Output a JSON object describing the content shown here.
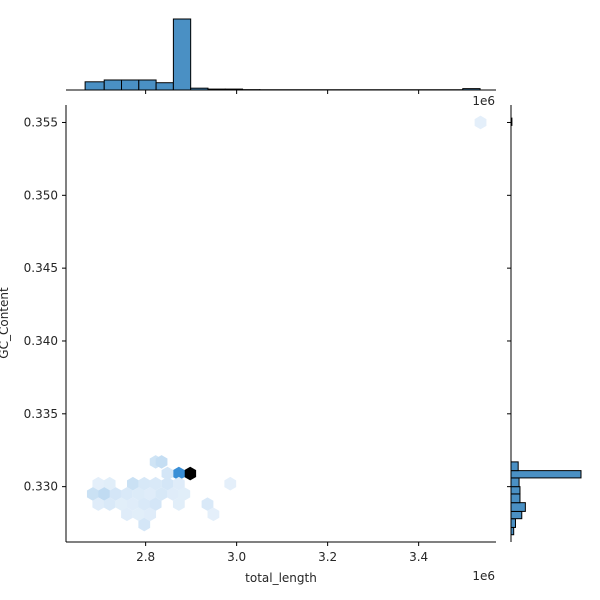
{
  "chart_data": {
    "type": "jointplot-hexbin",
    "xlabel": "total_length",
    "ylabel": "GC_Content",
    "x_offset_text": "1e6",
    "y_top_offset_text": "1e6",
    "xlim": [
      2.625,
      3.57
    ],
    "ylim": [
      0.3262,
      0.3562
    ],
    "x_ticks": [
      {
        "value": 2.8,
        "label": "2.8"
      },
      {
        "value": 3.0,
        "label": "3.0"
      },
      {
        "value": 3.2,
        "label": "3.2"
      },
      {
        "value": 3.4,
        "label": "3.4"
      }
    ],
    "y_ticks": [
      {
        "value": 0.33,
        "label": "0.330"
      },
      {
        "value": 0.335,
        "label": "0.335"
      },
      {
        "value": 0.34,
        "label": "0.340"
      },
      {
        "value": 0.345,
        "label": "0.345"
      },
      {
        "value": 0.35,
        "label": "0.350"
      },
      {
        "value": 0.355,
        "label": "0.355"
      }
    ],
    "colors": {
      "hex_max": "#000000",
      "hex_high": "#3a8fd6",
      "hex_low": "#eef5fc",
      "hist_fill": "#4a90c4",
      "hist_edge": "#000000",
      "axis": "#000000"
    },
    "hexbins": [
      {
        "x": 2.898,
        "y": 0.3309,
        "level": 1.0
      },
      {
        "x": 2.873,
        "y": 0.3309,
        "level": 0.7
      },
      {
        "x": 2.822,
        "y": 0.3317,
        "level": 0.12
      },
      {
        "x": 2.835,
        "y": 0.3317,
        "level": 0.16
      },
      {
        "x": 2.848,
        "y": 0.3309,
        "level": 0.1
      },
      {
        "x": 2.772,
        "y": 0.3302,
        "level": 0.14
      },
      {
        "x": 2.797,
        "y": 0.3302,
        "level": 0.09
      },
      {
        "x": 2.822,
        "y": 0.3302,
        "level": 0.08
      },
      {
        "x": 2.848,
        "y": 0.3302,
        "level": 0.1
      },
      {
        "x": 2.873,
        "y": 0.3302,
        "level": 0.06
      },
      {
        "x": 2.696,
        "y": 0.3302,
        "level": 0.04
      },
      {
        "x": 2.721,
        "y": 0.3302,
        "level": 0.05
      },
      {
        "x": 2.684,
        "y": 0.3295,
        "level": 0.14
      },
      {
        "x": 2.709,
        "y": 0.3295,
        "level": 0.18
      },
      {
        "x": 2.734,
        "y": 0.3295,
        "level": 0.1
      },
      {
        "x": 2.759,
        "y": 0.3295,
        "level": 0.08
      },
      {
        "x": 2.785,
        "y": 0.3295,
        "level": 0.07
      },
      {
        "x": 2.81,
        "y": 0.3295,
        "level": 0.06
      },
      {
        "x": 2.835,
        "y": 0.3295,
        "level": 0.09
      },
      {
        "x": 2.86,
        "y": 0.3295,
        "level": 0.06
      },
      {
        "x": 2.885,
        "y": 0.3295,
        "level": 0.05
      },
      {
        "x": 2.696,
        "y": 0.3288,
        "level": 0.06
      },
      {
        "x": 2.721,
        "y": 0.3288,
        "level": 0.08
      },
      {
        "x": 2.747,
        "y": 0.3288,
        "level": 0.05
      },
      {
        "x": 2.772,
        "y": 0.3288,
        "level": 0.06
      },
      {
        "x": 2.797,
        "y": 0.3288,
        "level": 0.08
      },
      {
        "x": 2.822,
        "y": 0.3288,
        "level": 0.1
      },
      {
        "x": 2.873,
        "y": 0.3288,
        "level": 0.05
      },
      {
        "x": 2.759,
        "y": 0.3281,
        "level": 0.06
      },
      {
        "x": 2.785,
        "y": 0.3281,
        "level": 0.05
      },
      {
        "x": 2.81,
        "y": 0.3281,
        "level": 0.06
      },
      {
        "x": 2.797,
        "y": 0.3274,
        "level": 0.1
      },
      {
        "x": 2.936,
        "y": 0.3288,
        "level": 0.08
      },
      {
        "x": 2.949,
        "y": 0.3281,
        "level": 0.04
      },
      {
        "x": 2.986,
        "y": 0.3302,
        "level": 0.04
      },
      {
        "x": 3.536,
        "y": 0.355,
        "level": 0.04
      }
    ],
    "top_histogram": {
      "bins": [
        {
          "x0": 2.667,
          "x1": 2.709,
          "count": 9
        },
        {
          "x0": 2.709,
          "x1": 2.747,
          "count": 11
        },
        {
          "x0": 2.747,
          "x1": 2.785,
          "count": 11
        },
        {
          "x0": 2.785,
          "x1": 2.823,
          "count": 11
        },
        {
          "x0": 2.823,
          "x1": 2.861,
          "count": 8
        },
        {
          "x0": 2.861,
          "x1": 2.899,
          "count": 78
        },
        {
          "x0": 2.899,
          "x1": 2.937,
          "count": 2
        },
        {
          "x0": 2.937,
          "x1": 2.975,
          "count": 1
        },
        {
          "x0": 2.975,
          "x1": 3.013,
          "count": 1
        },
        {
          "x0": 3.013,
          "x1": 3.051,
          "count": 0.4
        },
        {
          "x0": 3.051,
          "x1": 3.497,
          "count": 0.3
        },
        {
          "x0": 3.497,
          "x1": 3.535,
          "count": 1.5
        }
      ],
      "max_count": 78
    },
    "right_histogram": {
      "bins": [
        {
          "y0": 0.3267,
          "y1": 0.3272,
          "count": 3
        },
        {
          "y0": 0.3272,
          "y1": 0.3278,
          "count": 5
        },
        {
          "y0": 0.3278,
          "y1": 0.3283,
          "count": 12
        },
        {
          "y0": 0.3283,
          "y1": 0.3289,
          "count": 16
        },
        {
          "y0": 0.3289,
          "y1": 0.3295,
          "count": 10
        },
        {
          "y0": 0.3295,
          "y1": 0.33,
          "count": 10
        },
        {
          "y0": 0.33,
          "y1": 0.3306,
          "count": 9
        },
        {
          "y0": 0.3306,
          "y1": 0.3311,
          "count": 78
        },
        {
          "y0": 0.3311,
          "y1": 0.3317,
          "count": 8
        },
        {
          "y0": 0.3548,
          "y1": 0.3553,
          "count": 1
        }
      ],
      "max_count": 78
    }
  }
}
